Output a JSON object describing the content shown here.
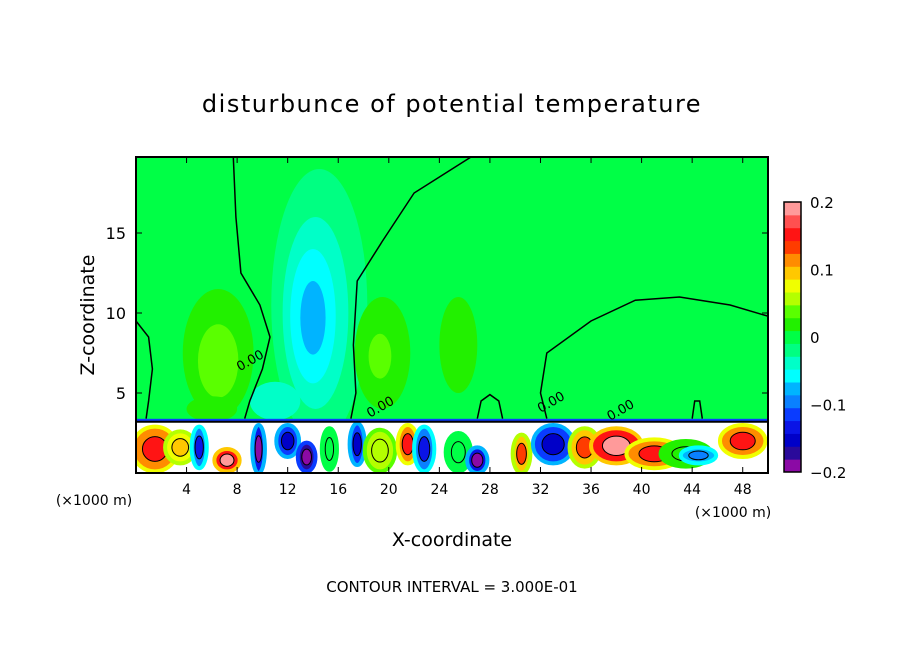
{
  "chart_data": {
    "type": "heatmap",
    "subtype": "filled-contour",
    "title": "disturbunce of potential temperature",
    "xlabel": "X-coordinate",
    "ylabel": "Z-coordinate",
    "x_unit_label": "(×1000 m)",
    "y_unit_label": "(×1000 m)",
    "xlim": [
      0,
      50
    ],
    "ylim": [
      0,
      19.75
    ],
    "xticks": [
      4,
      8,
      12,
      16,
      20,
      24,
      28,
      32,
      36,
      40,
      44,
      48
    ],
    "yticks": [
      5,
      10,
      15
    ],
    "footer": "CONTOUR INTERVAL = 3.000E-01",
    "contour_label": "0.00",
    "colorbar": {
      "range": [
        -0.2,
        0.2
      ],
      "ticks": [
        {
          "value": 0.2,
          "label": "0.2"
        },
        {
          "value": 0.1,
          "label": "0.1"
        },
        {
          "value": 0,
          "label": "0"
        },
        {
          "value": -0.1,
          "label": "−0.1"
        },
        {
          "value": -0.2,
          "label": "−0.2"
        }
      ],
      "colors": [
        "#8b0aa5",
        "#2a0a9a",
        "#0000c8",
        "#0a14e6",
        "#0a3cff",
        "#0a80ff",
        "#00b4ff",
        "#00ffff",
        "#00ffc8",
        "#00ff82",
        "#00ff46",
        "#22f000",
        "#5aff00",
        "#b4ff00",
        "#f0ff00",
        "#ffc800",
        "#ff8c00",
        "#ff3c00",
        "#ff1414",
        "#ff5050",
        "#ff9a9a"
      ]
    },
    "background_value": 0.005,
    "features": [
      {
        "x": 14.5,
        "z": 10.5,
        "rx": 3.8,
        "rz": 8.5,
        "value": -0.01
      },
      {
        "x": 14.2,
        "z": 10.0,
        "rx": 2.6,
        "rz": 6.0,
        "value": -0.03
      },
      {
        "x": 14.0,
        "z": 9.8,
        "rx": 1.8,
        "rz": 4.2,
        "value": -0.05
      },
      {
        "x": 14.0,
        "z": 9.7,
        "rx": 1.0,
        "rz": 2.3,
        "value": -0.08
      },
      {
        "x": 6.5,
        "z": 7.5,
        "rx": 2.8,
        "rz": 4.0,
        "value": 0.02
      },
      {
        "x": 6.5,
        "z": 7.0,
        "rx": 1.6,
        "rz": 2.3,
        "value": 0.04
      },
      {
        "x": 19.5,
        "z": 7.5,
        "rx": 2.2,
        "rz": 3.5,
        "value": 0.02
      },
      {
        "x": 19.3,
        "z": 7.3,
        "rx": 0.9,
        "rz": 1.4,
        "value": 0.04
      },
      {
        "x": 25.5,
        "z": 8.0,
        "rx": 1.5,
        "rz": 3.0,
        "value": 0.01
      },
      {
        "x": 11.0,
        "z": 4.5,
        "rx": 2.0,
        "rz": 1.2,
        "value": -0.03
      },
      {
        "x": 6.0,
        "z": 4.0,
        "rx": 2.0,
        "rz": 0.8,
        "value": 0.02
      }
    ],
    "surface_layer": {
      "top_z": 3.2,
      "blobs": [
        {
          "x": 1.5,
          "z": 1.5,
          "rx": 1.8,
          "rz": 1.4,
          "value": 0.12
        },
        {
          "x": 3.5,
          "z": 1.6,
          "rx": 1.2,
          "rz": 1.0,
          "value": 0.08
        },
        {
          "x": 5.0,
          "z": 1.6,
          "rx": 0.6,
          "rz": 1.3,
          "value": -0.1
        },
        {
          "x": 7.2,
          "z": 0.8,
          "rx": 1.0,
          "rz": 0.7,
          "value": 0.15
        },
        {
          "x": 9.7,
          "z": 1.5,
          "rx": 0.5,
          "rz": 1.5,
          "value": -0.14
        },
        {
          "x": 12.0,
          "z": 2.0,
          "rx": 0.9,
          "rz": 1.0,
          "value": -0.12
        },
        {
          "x": 13.5,
          "z": 1.0,
          "rx": 0.7,
          "rz": 0.9,
          "value": -0.18
        },
        {
          "x": 15.3,
          "z": 1.5,
          "rx": 0.6,
          "rz": 1.3,
          "value": 0.0
        },
        {
          "x": 17.5,
          "z": 1.8,
          "rx": 0.6,
          "rz": 1.3,
          "value": -0.12
        },
        {
          "x": 19.3,
          "z": 1.4,
          "rx": 1.2,
          "rz": 1.3,
          "value": 0.05
        },
        {
          "x": 21.5,
          "z": 1.8,
          "rx": 0.8,
          "rz": 1.2,
          "value": 0.12
        },
        {
          "x": 22.8,
          "z": 1.5,
          "rx": 0.8,
          "rz": 1.4,
          "value": -0.1
        },
        {
          "x": 25.5,
          "z": 1.3,
          "rx": 1.0,
          "rz": 1.2,
          "value": 0.0
        },
        {
          "x": 27.0,
          "z": 0.8,
          "rx": 0.8,
          "rz": 0.8,
          "value": -0.14
        },
        {
          "x": 30.5,
          "z": 1.2,
          "rx": 0.7,
          "rz": 1.2,
          "value": 0.1
        },
        {
          "x": 33.0,
          "z": 1.8,
          "rx": 1.6,
          "rz": 1.2,
          "value": -0.12
        },
        {
          "x": 35.5,
          "z": 1.6,
          "rx": 1.2,
          "rz": 1.2,
          "value": 0.1
        },
        {
          "x": 38.0,
          "z": 1.7,
          "rx": 2.0,
          "rz": 1.1,
          "value": 0.15
        },
        {
          "x": 41.0,
          "z": 1.2,
          "rx": 2.2,
          "rz": 0.9,
          "value": 0.12
        },
        {
          "x": 43.5,
          "z": 1.2,
          "rx": 2.0,
          "rz": 0.8,
          "value": 0.02
        },
        {
          "x": 44.5,
          "z": 1.1,
          "rx": 1.4,
          "rz": 0.5,
          "value": -0.08
        },
        {
          "x": 48.0,
          "z": 2.0,
          "rx": 1.8,
          "rz": 1.0,
          "value": 0.12
        }
      ]
    },
    "zero_contours": [
      [
        [
          7.7,
          19.75
        ],
        [
          7.9,
          16
        ],
        [
          8.3,
          12.5
        ],
        [
          9.8,
          10.5
        ],
        [
          10.6,
          8.5
        ],
        [
          10.0,
          6.5
        ],
        [
          9.0,
          4.5
        ],
        [
          8.6,
          3.4
        ]
      ],
      [
        [
          26.5,
          19.75
        ],
        [
          22,
          17.5
        ],
        [
          19.5,
          14.5
        ],
        [
          17.5,
          12
        ],
        [
          17.2,
          8
        ],
        [
          17.4,
          5
        ],
        [
          17.0,
          3.4
        ]
      ],
      [
        [
          50,
          9.8
        ],
        [
          47,
          10.5
        ],
        [
          43,
          11
        ],
        [
          39.5,
          10.8
        ],
        [
          36,
          9.5
        ],
        [
          32.5,
          7.5
        ],
        [
          32,
          5
        ],
        [
          32.5,
          3.4
        ]
      ],
      [
        [
          0,
          9.5
        ],
        [
          1.0,
          8.5
        ],
        [
          1.3,
          6.5
        ],
        [
          1.0,
          4.5
        ],
        [
          0.8,
          3.4
        ]
      ],
      [
        [
          27.0,
          3.4
        ],
        [
          27.3,
          4.5
        ],
        [
          28.0,
          4.9
        ],
        [
          28.7,
          4.5
        ],
        [
          29.0,
          3.4
        ]
      ],
      [
        [
          44.0,
          3.4
        ],
        [
          44.2,
          4.5
        ],
        [
          44.6,
          4.5
        ],
        [
          44.8,
          3.4
        ]
      ]
    ]
  }
}
